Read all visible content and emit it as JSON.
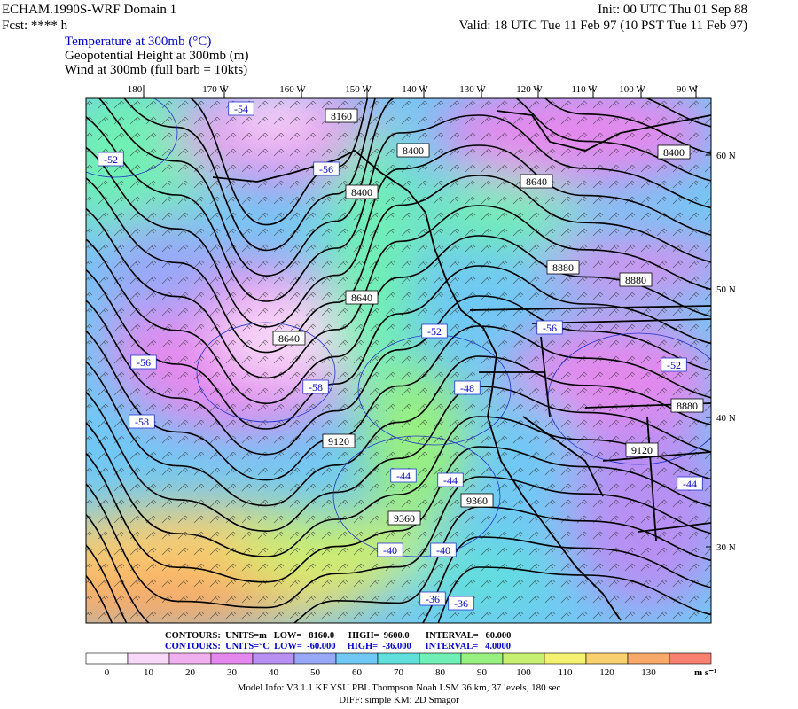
{
  "header": {
    "model": "ECHAM.1990S-WRF Domain 1",
    "fcst": "Fcst: **** h",
    "init": "Init: 00 UTC Thu 01 Sep 88",
    "valid": "Valid: 18 UTC Tue 11 Feb 97 (10 PST Tue 11 Feb 97)"
  },
  "fields": [
    "Temperature at 300mb (°C)",
    "Geopotential Height at 300mb (m)",
    "Wind at 300mb (full barb = 10kts)"
  ],
  "longitudes": [
    "180",
    "170 W",
    "160 W",
    "150 W",
    "140 W",
    "130 W",
    "120 W",
    "110 W",
    "100 W",
    "90 W"
  ],
  "latitudes": [
    "60 N",
    "50 N",
    "40 N",
    "30 N"
  ],
  "height_labels": [
    "8160",
    "8400",
    "8400",
    "8640",
    "8400",
    "8640",
    "8880",
    "8880",
    "8640",
    "9120",
    "8880",
    "9120",
    "9360",
    "9360"
  ],
  "temp_labels": [
    "-54",
    "-52",
    "-56",
    "-52",
    "-56",
    "-56",
    "-58",
    "-58",
    "-48",
    "-52",
    "-44",
    "-44",
    "-40",
    "-40",
    "-36",
    "-36",
    "-44"
  ],
  "contour_info": {
    "height": "CONTOURS:  UNITS=m   LOW=   8160.0      HIGH=  9600.0       INTERVAL=   60.000",
    "temperature": "CONTOURS:  UNITS=°C  LOW=  -60.000     HIGH=  -36.000      INTERVAL=   4.0000"
  },
  "colorbar": {
    "labels": [
      "0",
      "10",
      "20",
      "30",
      "40",
      "50",
      "60",
      "70",
      "80",
      "90",
      "100",
      "110",
      "120",
      "130"
    ],
    "unit": "m s⁻¹",
    "colors": [
      "#ffffff",
      "#f8d8f8",
      "#f0b0f0",
      "#e488ee",
      "#b890f4",
      "#98a8f8",
      "#70c8f4",
      "#60e0dc",
      "#70f0b4",
      "#98f080",
      "#c8f070",
      "#f4f070",
      "#f8d070",
      "#f8a868",
      "#f88070"
    ]
  },
  "footer": [
    "Model Info: V3.1.1    KF     YSU PBL   Thompson    Noah LSM   36 km,   37 levels,   180 sec",
    "DIFF: simple KM: 2D Smagor"
  ]
}
